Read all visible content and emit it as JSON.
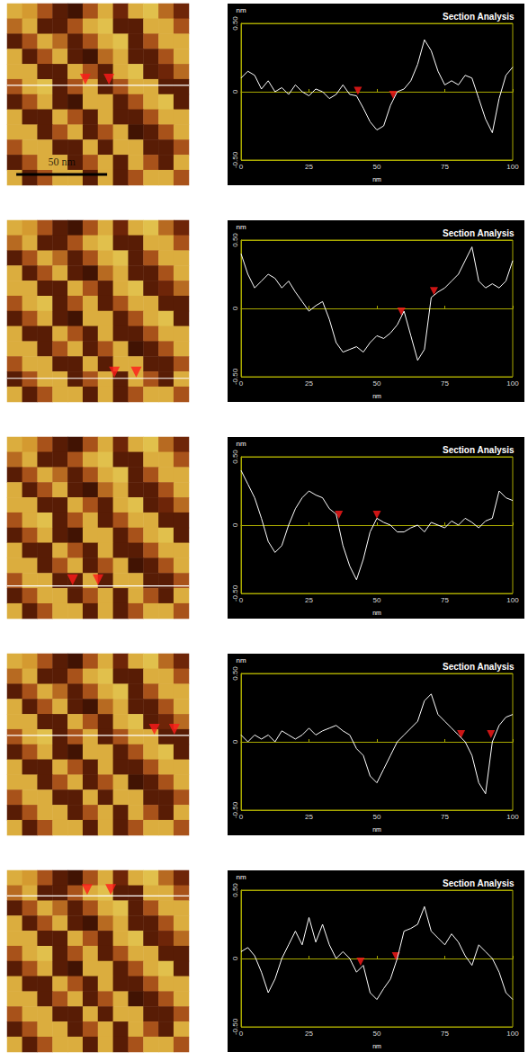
{
  "afm_image": {
    "type": "heatmap",
    "xlim": [
      0,
      100
    ],
    "ylim": [
      0,
      100
    ],
    "zlim": [
      -0.3,
      0.3
    ],
    "colors": [
      "#2b0a00",
      "#6e2508",
      "#a8521a",
      "#d49a30",
      "#e8d35a"
    ],
    "cells": [
      [
        0.2,
        0.15,
        0.0,
        -0.2,
        -0.25,
        0.0,
        0.2,
        -0.15,
        0.2,
        0.25,
        0.05,
        -0.15
      ],
      [
        0.05,
        0.2,
        -0.2,
        -0.2,
        0.0,
        0.2,
        0.25,
        -0.2,
        -0.2,
        0.2,
        0.2,
        0.0
      ],
      [
        -0.2,
        0.0,
        0.2,
        0.05,
        -0.2,
        0.0,
        0.2,
        0.25,
        -0.2,
        0.0,
        0.2,
        0.2
      ],
      [
        0.2,
        -0.2,
        0.0,
        0.2,
        -0.2,
        -0.25,
        0.05,
        0.2,
        -0.2,
        -0.2,
        0.0,
        0.2
      ],
      [
        0.2,
        0.2,
        -0.2,
        -0.2,
        0.2,
        0.0,
        -0.2,
        0.2,
        0.25,
        -0.2,
        -0.15,
        0.05
      ],
      [
        0.0,
        0.2,
        0.25,
        -0.2,
        0.0,
        0.2,
        -0.2,
        0.0,
        0.2,
        0.2,
        -0.2,
        -0.2
      ],
      [
        -0.2,
        0.0,
        0.2,
        -0.2,
        -0.25,
        0.2,
        0.2,
        -0.2,
        0.0,
        0.2,
        0.25,
        -0.2
      ],
      [
        0.2,
        -0.2,
        -0.2,
        0.2,
        0.0,
        -0.2,
        0.2,
        -0.2,
        -0.2,
        0.0,
        0.2,
        0.2
      ],
      [
        0.2,
        0.2,
        -0.2,
        0.0,
        0.2,
        -0.2,
        0.0,
        0.2,
        -0.25,
        -0.2,
        0.0,
        0.2
      ],
      [
        0.0,
        0.2,
        0.2,
        -0.2,
        -0.2,
        0.2,
        -0.2,
        0.2,
        0.2,
        -0.2,
        -0.2,
        0.0
      ],
      [
        -0.2,
        0.0,
        0.2,
        0.2,
        -0.2,
        0.0,
        0.2,
        -0.2,
        0.2,
        0.0,
        -0.2,
        0.2
      ],
      [
        0.2,
        -0.2,
        0.0,
        0.2,
        0.2,
        -0.2,
        0.2,
        -0.2,
        0.0,
        0.2,
        0.2,
        0.0
      ]
    ]
  },
  "chart_data": [
    {
      "type": "line",
      "title": "Section Analysis",
      "x_label": "nm",
      "y_label": "nm",
      "color": "#ffffff",
      "grid": true,
      "xlim": [
        0,
        100
      ],
      "ylim": [
        -0.5,
        0.5
      ],
      "xticks": [
        0,
        25,
        50,
        75,
        100
      ],
      "yticks": [
        {
          "value": -0.5,
          "label": "-0.50"
        },
        0,
        {
          "value": 0.5,
          "label": "0.50"
        }
      ],
      "scale_bar": {
        "label": "50 nm",
        "length": 50
      },
      "section_y": 45,
      "markers": {
        "marker": "triangle",
        "color": "#ff1a1a",
        "points": [
          {
            "x": 43,
            "y": -0.02
          },
          {
            "x": 56,
            "y": -0.05
          }
        ]
      },
      "x": [
        0,
        2.5,
        5,
        7.5,
        10,
        12.5,
        15,
        17.5,
        20,
        22.5,
        25,
        27.5,
        30,
        32.5,
        35,
        37.5,
        40,
        42.5,
        45,
        47.5,
        50,
        52.5,
        55,
        57.5,
        60,
        62.5,
        65,
        67.5,
        70,
        72.5,
        75,
        77.5,
        80,
        82.5,
        85,
        87.5,
        90,
        92.5,
        95,
        97.5,
        100
      ],
      "values": [
        0.1,
        0.15,
        0.12,
        0.02,
        0.08,
        0.0,
        0.03,
        -0.02,
        0.05,
        0.0,
        -0.03,
        0.02,
        0.0,
        -0.05,
        -0.02,
        0.05,
        -0.02,
        -0.03,
        -0.12,
        -0.22,
        -0.28,
        -0.25,
        -0.1,
        0.0,
        0.02,
        0.08,
        0.2,
        0.38,
        0.3,
        0.15,
        0.05,
        0.08,
        0.05,
        0.12,
        0.1,
        -0.05,
        -0.2,
        -0.3,
        -0.05,
        0.12,
        0.18
      ]
    },
    {
      "type": "line",
      "title": "Section Analysis",
      "x_label": "nm",
      "y_label": "nm",
      "color": "#ffffff",
      "grid": true,
      "xlim": [
        0,
        100
      ],
      "ylim": [
        -0.5,
        0.5
      ],
      "xticks": [
        0,
        25,
        50,
        75,
        100
      ],
      "yticks": [
        {
          "value": -0.5,
          "label": "-0.50"
        },
        0,
        {
          "value": 0.5,
          "label": "0.50"
        }
      ],
      "section_y": 87,
      "markers": {
        "marker": "triangle",
        "color": "#ff1a1a",
        "points": [
          {
            "x": 59,
            "y": -0.05
          },
          {
            "x": 71,
            "y": 0.1
          }
        ]
      },
      "x": [
        0,
        2.5,
        5,
        7.5,
        10,
        12.5,
        15,
        17.5,
        20,
        22.5,
        25,
        27.5,
        30,
        32.5,
        35,
        37.5,
        40,
        42.5,
        45,
        47.5,
        50,
        52.5,
        55,
        57.5,
        60,
        62.5,
        65,
        67.5,
        70,
        72.5,
        75,
        77.5,
        80,
        82.5,
        85,
        87.5,
        90,
        92.5,
        95,
        97.5,
        100
      ],
      "values": [
        0.4,
        0.25,
        0.15,
        0.2,
        0.25,
        0.22,
        0.15,
        0.2,
        0.12,
        0.05,
        -0.02,
        0.02,
        0.05,
        -0.08,
        -0.25,
        -0.32,
        -0.3,
        -0.28,
        -0.32,
        -0.25,
        -0.2,
        -0.22,
        -0.18,
        -0.12,
        -0.02,
        -0.2,
        -0.38,
        -0.3,
        0.08,
        0.12,
        0.15,
        0.2,
        0.25,
        0.35,
        0.45,
        0.2,
        0.15,
        0.18,
        0.15,
        0.2,
        0.35
      ]
    },
    {
      "type": "line",
      "title": "Section Analysis",
      "x_label": "nm",
      "y_label": "nm",
      "color": "#ffffff",
      "grid": true,
      "xlim": [
        0,
        100
      ],
      "ylim": [
        -0.5,
        0.5
      ],
      "xticks": [
        0,
        25,
        50,
        75,
        100
      ],
      "yticks": [
        {
          "value": -0.5,
          "label": "-0.50"
        },
        0,
        {
          "value": 0.5,
          "label": "0.50"
        }
      ],
      "section_y": 82,
      "markers": {
        "marker": "triangle",
        "color": "#ff1a1a",
        "points": [
          {
            "x": 36,
            "y": 0.05
          },
          {
            "x": 50,
            "y": 0.05
          }
        ]
      },
      "x": [
        0,
        2.5,
        5,
        7.5,
        10,
        12.5,
        15,
        17.5,
        20,
        22.5,
        25,
        27.5,
        30,
        32.5,
        35,
        37.5,
        40,
        42.5,
        45,
        47.5,
        50,
        52.5,
        55,
        57.5,
        60,
        62.5,
        65,
        67.5,
        70,
        72.5,
        75,
        77.5,
        80,
        82.5,
        85,
        87.5,
        90,
        92.5,
        95,
        97.5,
        100
      ],
      "values": [
        0.4,
        0.3,
        0.2,
        0.05,
        -0.12,
        -0.2,
        -0.15,
        0.0,
        0.12,
        0.2,
        0.25,
        0.22,
        0.2,
        0.12,
        0.08,
        -0.15,
        -0.3,
        -0.4,
        -0.25,
        -0.05,
        0.05,
        0.02,
        0.0,
        -0.05,
        -0.05,
        -0.02,
        0.0,
        -0.05,
        0.02,
        0.0,
        -0.02,
        0.03,
        0.0,
        0.05,
        0.02,
        -0.02,
        0.03,
        0.05,
        0.25,
        0.2,
        0.18
      ]
    },
    {
      "type": "line",
      "title": "Section Analysis",
      "x_label": "nm",
      "y_label": "nm",
      "color": "#ffffff",
      "grid": true,
      "xlim": [
        0,
        100
      ],
      "ylim": [
        -0.5,
        0.5
      ],
      "xticks": [
        0,
        25,
        50,
        75,
        100
      ],
      "yticks": [
        {
          "value": -0.5,
          "label": "-0.50"
        },
        0,
        {
          "value": 0.5,
          "label": "0.50"
        }
      ],
      "section_y": 45,
      "markers": {
        "marker": "triangle",
        "color": "#ff1a1a",
        "points": [
          {
            "x": 81,
            "y": 0.03
          },
          {
            "x": 92,
            "y": 0.03
          }
        ]
      },
      "x": [
        0,
        2.5,
        5,
        7.5,
        10,
        12.5,
        15,
        17.5,
        20,
        22.5,
        25,
        27.5,
        30,
        32.5,
        35,
        37.5,
        40,
        42.5,
        45,
        47.5,
        50,
        52.5,
        55,
        57.5,
        60,
        62.5,
        65,
        67.5,
        70,
        72.5,
        75,
        77.5,
        80,
        82.5,
        85,
        87.5,
        90,
        92.5,
        95,
        97.5,
        100
      ],
      "values": [
        0.05,
        0.0,
        0.05,
        0.02,
        0.05,
        0.0,
        0.08,
        0.05,
        0.02,
        0.05,
        0.1,
        0.05,
        0.08,
        0.1,
        0.12,
        0.08,
        0.05,
        -0.05,
        -0.1,
        -0.25,
        -0.3,
        -0.2,
        -0.1,
        0.0,
        0.05,
        0.1,
        0.15,
        0.3,
        0.35,
        0.2,
        0.15,
        0.1,
        0.05,
        0.0,
        -0.1,
        -0.3,
        -0.38,
        0.0,
        0.12,
        0.18,
        0.2
      ]
    },
    {
      "type": "line",
      "title": "Section Analysis",
      "x_label": "nm",
      "y_label": "nm",
      "color": "#ffffff",
      "grid": true,
      "xlim": [
        0,
        100
      ],
      "ylim": [
        -0.5,
        0.5
      ],
      "xticks": [
        0,
        25,
        50,
        75,
        100
      ],
      "yticks": [
        {
          "value": -0.5,
          "label": "-0.50"
        },
        0,
        {
          "value": 0.5,
          "label": "0.50"
        }
      ],
      "section_y": 14,
      "markers": {
        "marker": "triangle",
        "color": "#ff1a1a",
        "points": [
          {
            "x": 44,
            "y": -0.05
          },
          {
            "x": 57,
            "y": -0.01
          }
        ]
      },
      "x": [
        0,
        2.5,
        5,
        7.5,
        10,
        12.5,
        15,
        17.5,
        20,
        22.5,
        25,
        27.5,
        30,
        32.5,
        35,
        37.5,
        40,
        42.5,
        45,
        47.5,
        50,
        52.5,
        55,
        57.5,
        60,
        62.5,
        65,
        67.5,
        70,
        72.5,
        75,
        77.5,
        80,
        82.5,
        85,
        87.5,
        90,
        92.5,
        95,
        97.5,
        100
      ],
      "values": [
        0.05,
        0.08,
        0.02,
        -0.1,
        -0.25,
        -0.15,
        0.0,
        0.1,
        0.2,
        0.1,
        0.3,
        0.12,
        0.25,
        0.1,
        0.0,
        0.05,
        0.0,
        -0.1,
        -0.05,
        -0.25,
        -0.3,
        -0.22,
        -0.15,
        0.0,
        0.2,
        0.22,
        0.25,
        0.38,
        0.2,
        0.15,
        0.1,
        0.18,
        0.12,
        0.02,
        -0.05,
        0.1,
        0.05,
        0.0,
        -0.1,
        -0.25,
        -0.3
      ]
    }
  ]
}
